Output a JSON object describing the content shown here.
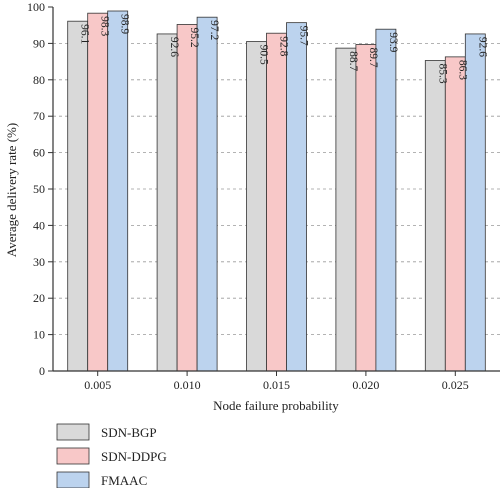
{
  "chart_data": {
    "type": "bar",
    "title": "",
    "xlabel": "Node failure probability",
    "ylabel": "Average delivery rate (%)",
    "ylim": [
      0,
      100
    ],
    "yticks": [
      "0",
      "10",
      "20",
      "30",
      "40",
      "50",
      "60",
      "70",
      "80",
      "90",
      "100"
    ],
    "categories": [
      "0.005",
      "0.010",
      "0.015",
      "0.020",
      "0.025"
    ],
    "grid": "horizontal-dashed",
    "legend_position": "bottom-left",
    "series": [
      {
        "name": "SDN-BGP",
        "color": "#d9d9d9",
        "values": [
          96.1,
          92.6,
          90.5,
          88.7,
          85.3
        ],
        "labels": [
          "96.1",
          "92.6",
          "90.5",
          "88.7",
          "85.3"
        ]
      },
      {
        "name": "SDN-DDPG",
        "color": "#f8c8c8",
        "values": [
          98.3,
          95.2,
          92.8,
          89.7,
          86.3
        ],
        "labels": [
          "98.3",
          "95.2",
          "92.8",
          "89.7",
          "86.3"
        ]
      },
      {
        "name": "FMAAC",
        "color": "#bcd3ee",
        "values": [
          98.9,
          97.2,
          95.7,
          93.9,
          92.6
        ],
        "labels": [
          "98.9",
          "97.2",
          "95.7",
          "93.9",
          "92.6"
        ]
      }
    ]
  }
}
